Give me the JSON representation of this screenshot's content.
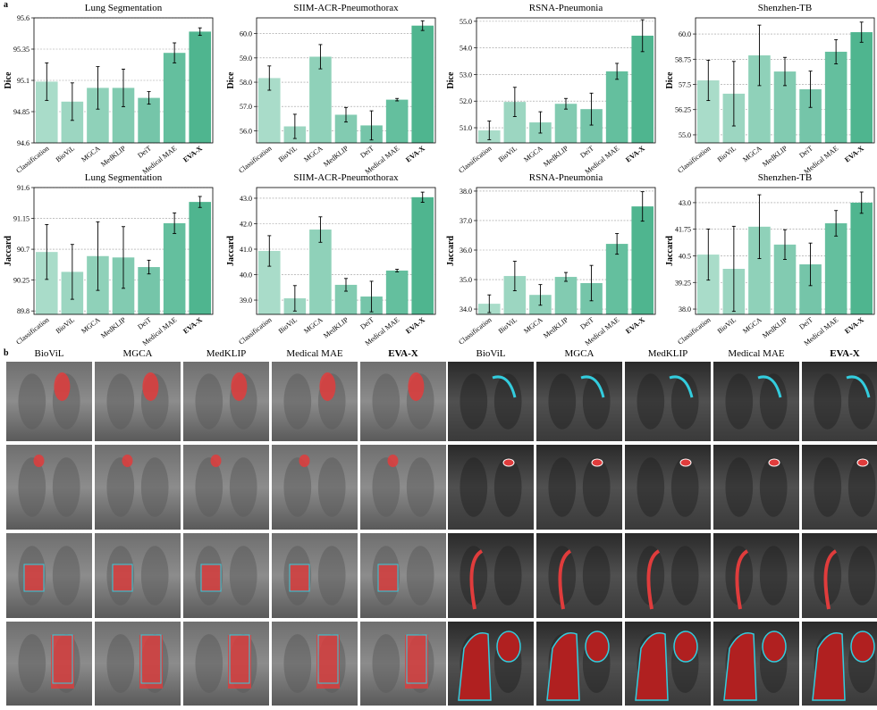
{
  "panel_labels": [
    "a",
    "b"
  ],
  "image_columns": [
    "BioViL",
    "MGCA",
    "MedKLIP",
    "Medical MAE",
    "EVA-X",
    "BioViL",
    "MGCA",
    "MedKLIP",
    "Medical MAE",
    "EVA-X"
  ],
  "chart_data": [
    {
      "type": "bar",
      "title": "Lung Segmentation",
      "ylabel": "Dice",
      "categories": [
        "Classification",
        "BioViL",
        "MGCA",
        "MedKLIP",
        "DeiT",
        "Medical MAE",
        "EVA-X"
      ],
      "values": [
        95.09,
        94.93,
        95.04,
        95.04,
        94.96,
        95.32,
        95.49
      ],
      "errors": [
        0.15,
        0.15,
        0.17,
        0.15,
        0.05,
        0.08,
        0.03
      ],
      "colors": [
        "#a9dcc9",
        "#9cd6c1",
        "#8fd1b9",
        "#82cbb1",
        "#75c5a9",
        "#64bf9e",
        "#4fb58f"
      ],
      "ylim": [
        94.6,
        95.6
      ],
      "yticks": [
        94.6,
        94.85,
        95.1,
        95.35,
        95.6
      ],
      "grid": true
    },
    {
      "type": "bar",
      "title": "SIIM-ACR-Pneumothorax",
      "ylabel": "Dice",
      "categories": [
        "Classification",
        "BioViL",
        "MGCA",
        "MedKLIP",
        "DeiT",
        "Medical MAE",
        "EVA-X"
      ],
      "values": [
        58.17,
        56.18,
        59.05,
        56.66,
        56.22,
        57.28,
        60.33
      ],
      "errors": [
        0.5,
        0.5,
        0.5,
        0.3,
        0.6,
        0.05,
        0.2
      ],
      "colors": [
        "#a9dcc9",
        "#9cd6c1",
        "#8fd1b9",
        "#82cbb1",
        "#75c5a9",
        "#64bf9e",
        "#4fb58f"
      ],
      "ylim": [
        55.5,
        60.65
      ],
      "yticks": [
        {
          "value": 56,
          "label": "56.0"
        },
        {
          "value": 57,
          "label": "57.0"
        },
        {
          "value": 58,
          "label": "58.0"
        },
        {
          "value": 59,
          "label": "59.0"
        },
        {
          "value": 60,
          "label": "60.0"
        }
      ],
      "grid": true
    },
    {
      "type": "bar",
      "title": "RSNA-Pneumonia",
      "ylabel": "Dice",
      "categories": [
        "Classification",
        "BioViL",
        "MGCA",
        "MedKLIP",
        "DeiT",
        "Medical MAE",
        "EVA-X"
      ],
      "values": [
        50.9,
        51.97,
        51.2,
        51.9,
        51.7,
        53.12,
        54.46
      ],
      "errors": [
        0.35,
        0.55,
        0.4,
        0.2,
        0.6,
        0.3,
        0.6
      ],
      "colors": [
        "#a9dcc9",
        "#9cd6c1",
        "#8fd1b9",
        "#82cbb1",
        "#75c5a9",
        "#64bf9e",
        "#4fb58f"
      ],
      "ylim": [
        50.43,
        55.13
      ],
      "yticks": [
        {
          "value": 51,
          "label": "51.0"
        },
        {
          "value": 52,
          "label": "52.0"
        },
        {
          "value": 53,
          "label": "53.0"
        },
        {
          "value": 54,
          "label": "54.0"
        },
        {
          "value": 55,
          "label": "55.0"
        }
      ],
      "grid": true
    },
    {
      "type": "bar",
      "title": "Shenzhen-TB",
      "ylabel": "Dice",
      "categories": [
        "Classification",
        "BioViL",
        "MGCA",
        "MedKLIP",
        "DeiT",
        "Medical MAE",
        "EVA-X"
      ],
      "values": [
        57.7,
        57.04,
        58.94,
        58.14,
        57.26,
        59.12,
        60.09
      ],
      "errors": [
        1.0,
        1.6,
        1.5,
        0.7,
        0.9,
        0.6,
        0.5
      ],
      "colors": [
        "#a9dcc9",
        "#9cd6c1",
        "#8fd1b9",
        "#82cbb1",
        "#75c5a9",
        "#64bf9e",
        "#4fb58f"
      ],
      "ylim": [
        54.6,
        60.8
      ],
      "yticks": [
        {
          "value": 55,
          "label": "55.0"
        },
        56.25,
        57.5,
        58.75,
        {
          "value": 60,
          "label": "60.0"
        }
      ],
      "grid": true
    },
    {
      "type": "bar",
      "title": "Lung Segmentation",
      "ylabel": "Jaccard",
      "categories": [
        "Classification",
        "BioViL",
        "MGCA",
        "MedKLIP",
        "DeiT",
        "Medical MAE",
        "EVA-X"
      ],
      "values": [
        90.66,
        90.37,
        90.6,
        90.58,
        90.44,
        91.08,
        91.39
      ],
      "errors": [
        0.4,
        0.4,
        0.5,
        0.45,
        0.1,
        0.15,
        0.08
      ],
      "colors": [
        "#a9dcc9",
        "#9cd6c1",
        "#8fd1b9",
        "#82cbb1",
        "#75c5a9",
        "#64bf9e",
        "#4fb58f"
      ],
      "ylim": [
        89.75,
        91.6
      ],
      "yticks": [
        89.8,
        90.25,
        90.7,
        91.15,
        91.6
      ],
      "grid": true
    },
    {
      "type": "bar",
      "title": "SIIM-ACR-Pneumothorax",
      "ylabel": "Jaccard",
      "categories": [
        "Classification",
        "BioViL",
        "MGCA",
        "MedKLIP",
        "DeiT",
        "Medical MAE",
        "EVA-X"
      ],
      "values": [
        40.93,
        39.07,
        41.77,
        39.6,
        39.14,
        40.16,
        43.04
      ],
      "errors": [
        0.6,
        0.5,
        0.5,
        0.25,
        0.6,
        0.05,
        0.2
      ],
      "colors": [
        "#a9dcc9",
        "#9cd6c1",
        "#8fd1b9",
        "#82cbb1",
        "#75c5a9",
        "#64bf9e",
        "#4fb58f"
      ],
      "ylim": [
        38.44,
        43.42
      ],
      "yticks": [
        {
          "value": 39,
          "label": "39.0"
        },
        {
          "value": 40,
          "label": "40.0"
        },
        {
          "value": 41,
          "label": "41.0"
        },
        {
          "value": 42,
          "label": "42.0"
        },
        {
          "value": 43,
          "label": "43.0"
        }
      ],
      "grid": true
    },
    {
      "type": "bar",
      "title": "RSNA-Pneumonia",
      "ylabel": "Jaccard",
      "categories": [
        "Classification",
        "BioViL",
        "MGCA",
        "MedKLIP",
        "DeiT",
        "Medical MAE",
        "EVA-X"
      ],
      "values": [
        34.18,
        35.12,
        34.48,
        35.09,
        34.88,
        36.21,
        37.48
      ],
      "errors": [
        0.3,
        0.5,
        0.35,
        0.15,
        0.6,
        0.35,
        0.5
      ],
      "colors": [
        "#a9dcc9",
        "#9cd6c1",
        "#8fd1b9",
        "#82cbb1",
        "#75c5a9",
        "#64bf9e",
        "#4fb58f"
      ],
      "ylim": [
        33.82,
        38.12
      ],
      "yticks": [
        {
          "value": 34,
          "label": "34.0"
        },
        {
          "value": 35,
          "label": "35.0"
        },
        {
          "value": 36,
          "label": "36.0"
        },
        {
          "value": 37,
          "label": "37.0"
        },
        {
          "value": 38,
          "label": "38.0"
        }
      ],
      "grid": true
    },
    {
      "type": "bar",
      "title": "Shenzhen-TB",
      "ylabel": "Jaccard",
      "categories": [
        "Classification",
        "BioViL",
        "MGCA",
        "MedKLIP",
        "DeiT",
        "Medical MAE",
        "EVA-X"
      ],
      "values": [
        40.56,
        39.89,
        41.87,
        41.03,
        40.1,
        42.03,
        43.0
      ],
      "errors": [
        1.2,
        2.0,
        1.5,
        0.7,
        1.0,
        0.6,
        0.5
      ],
      "colors": [
        "#a9dcc9",
        "#9cd6c1",
        "#8fd1b9",
        "#82cbb1",
        "#75c5a9",
        "#64bf9e",
        "#4fb58f"
      ],
      "ylim": [
        37.75,
        43.71
      ],
      "yticks": [
        {
          "value": 38,
          "label": "38.0"
        },
        39.25,
        40.5,
        41.75,
        {
          "value": 43,
          "label": "43.0"
        }
      ],
      "grid": true
    }
  ]
}
